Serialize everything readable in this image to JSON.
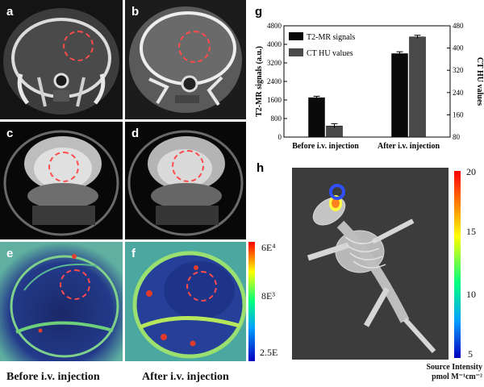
{
  "panels": {
    "a": "a",
    "b": "b",
    "c": "c",
    "d": "d",
    "e": "e",
    "f": "f",
    "g": "g",
    "h": "h"
  },
  "captions": {
    "before": "Before i.v. injection",
    "after": "After i.v. injection"
  },
  "colorbar_ef": {
    "top": "6E⁴",
    "mid": "8E³",
    "bottom": "2.5E"
  },
  "colorbar_h": {
    "ticks": [
      "20",
      "15",
      "10",
      "5"
    ],
    "title_line1": "Source Intensity",
    "title_line2": "pmol M⁻¹cm⁻²"
  },
  "chart_data": {
    "type": "bar",
    "categories": [
      "Before i.v. injection",
      "After i.v. injection"
    ],
    "series": [
      {
        "name": "T2-MR signals",
        "axis": "left",
        "values": [
          1700,
          3600
        ],
        "errors": [
          60,
          80
        ],
        "color": "#0a0a0a"
      },
      {
        "name": "CT HU values",
        "axis": "right",
        "values": [
          120,
          440
        ],
        "errors": [
          8,
          6
        ],
        "color": "#4a4a4a"
      }
    ],
    "ylabel": "T2-MR signals (a.u.)",
    "ylabel_right": "CT HU values",
    "ylim": [
      0,
      4800
    ],
    "ylim_right": [
      80,
      480
    ],
    "yticks": [
      "0",
      "800",
      "1600",
      "2400",
      "3200",
      "4000",
      "4800"
    ],
    "yticks_right": [
      "80",
      "160",
      "240",
      "320",
      "400",
      "480"
    ],
    "legend_position": "top-left"
  }
}
